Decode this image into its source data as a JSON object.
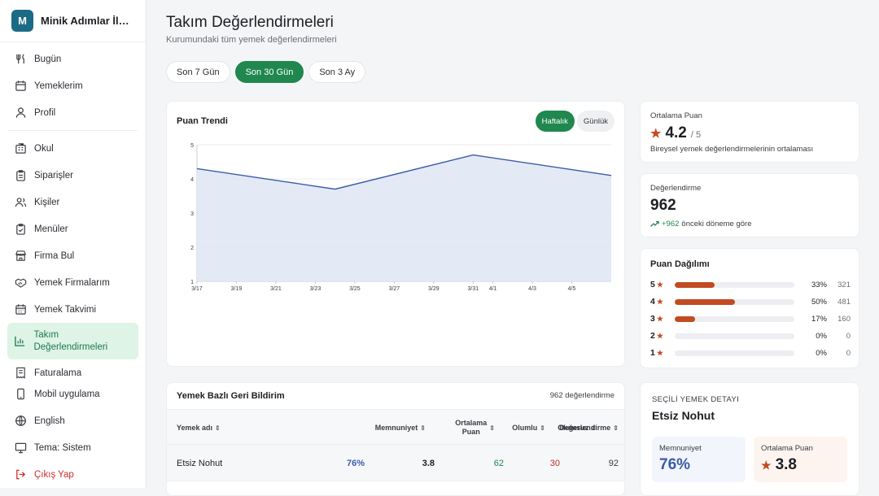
{
  "brand": {
    "initial": "M",
    "name": "Minik Adımlar İlkokulu"
  },
  "nav": {
    "group1": [
      {
        "label": "Bugün",
        "icon": "utensils-icon"
      },
      {
        "label": "Yemeklerim",
        "icon": "calendar-icon"
      },
      {
        "label": "Profil",
        "icon": "user-icon"
      }
    ],
    "group2": [
      {
        "label": "Okul",
        "icon": "building-icon"
      },
      {
        "label": "Siparişler",
        "icon": "clipboard-icon"
      },
      {
        "label": "Kişiler",
        "icon": "users-icon"
      },
      {
        "label": "Menüler",
        "icon": "clipboard-check-icon"
      },
      {
        "label": "Firma Bul",
        "icon": "store-icon"
      },
      {
        "label": "Yemek Firmalarım",
        "icon": "handshake-icon"
      },
      {
        "label": "Yemek Takvimi",
        "icon": "calendar-days-icon"
      },
      {
        "label": "Takım Değerlendirmeleri",
        "icon": "bar-chart-icon"
      },
      {
        "label": "Faturalama",
        "icon": "receipt-icon"
      }
    ],
    "group3": [
      {
        "label": "Mobil uygulama",
        "icon": "phone-icon"
      },
      {
        "label": "English",
        "icon": "globe-icon"
      },
      {
        "label": "Tema: Sistem",
        "icon": "monitor-icon"
      },
      {
        "label": "Çıkış Yap",
        "icon": "logout-icon"
      }
    ]
  },
  "page": {
    "title": "Takım Değerlendirmeleri",
    "subtitle": "Kurumundaki tüm yemek değerlendirmeleri"
  },
  "periods": [
    "Son 7 Gün",
    "Son 30 Gün",
    "Son 3 Ay"
  ],
  "active_period": "Son 30 Gün",
  "trend": {
    "title": "Puan Trendi",
    "toggles": [
      "Haftalık",
      "Günlük"
    ],
    "active_toggle": "Haftalık"
  },
  "chart_data": {
    "type": "area",
    "title": "Puan Trendi",
    "x": [
      "3/17",
      "3/24",
      "3/31",
      "4/7"
    ],
    "values": [
      4.3,
      3.7,
      4.7,
      4.1
    ],
    "x_ticks": [
      "3/17",
      "3/19",
      "3/21",
      "3/23",
      "3/25",
      "3/27",
      "3/29",
      "3/31",
      "4/1",
      "4/3",
      "4/5"
    ],
    "y_ticks": [
      1,
      2,
      3,
      4,
      5
    ],
    "ylim": [
      1,
      5
    ],
    "grid": true,
    "colors": {
      "line": "#3b5ba9",
      "fill": "#dfe5f4"
    }
  },
  "avg": {
    "label": "Ortalama Puan",
    "value": "4.2",
    "of": "/ 5",
    "desc": "Bireysel yemek değerlendirmelerinin ortalaması"
  },
  "count": {
    "label": "Değerlendirme",
    "value": "962",
    "delta": "+962",
    "desc": "önceki döneme göre"
  },
  "distribution": {
    "title": "Puan Dağılımı",
    "rows": [
      {
        "star": "5",
        "pct": 33,
        "pct_label": "33%",
        "count": "321"
      },
      {
        "star": "4",
        "pct": 50,
        "pct_label": "50%",
        "count": "481"
      },
      {
        "star": "3",
        "pct": 17,
        "pct_label": "17%",
        "count": "160"
      },
      {
        "star": "2",
        "pct": 0,
        "pct_label": "0%",
        "count": "0"
      },
      {
        "star": "1",
        "pct": 0,
        "pct_label": "0%",
        "count": "0"
      }
    ]
  },
  "table": {
    "title": "Yemek Bazlı Geri Bildirim",
    "count": "962 değerlendirme",
    "columns": [
      "Yemek adı",
      "Memnuniyet",
      "Ortalama\nPuan",
      "Olumlu",
      "Olumsuz",
      "Değerlendirme"
    ],
    "rows": [
      {
        "name": "Etsiz Nohut",
        "satisfaction": "76%",
        "avg": "3.8",
        "positive": "62",
        "negative": "30",
        "reviews": "92"
      }
    ]
  },
  "detail": {
    "label": "SEÇİLİ YEMEK DETAYI",
    "name": "Etsiz Nohut",
    "satisfaction_label": "Memnuniyet",
    "satisfaction": "76%",
    "avg_label": "Ortalama Puan",
    "avg": "3.8"
  }
}
